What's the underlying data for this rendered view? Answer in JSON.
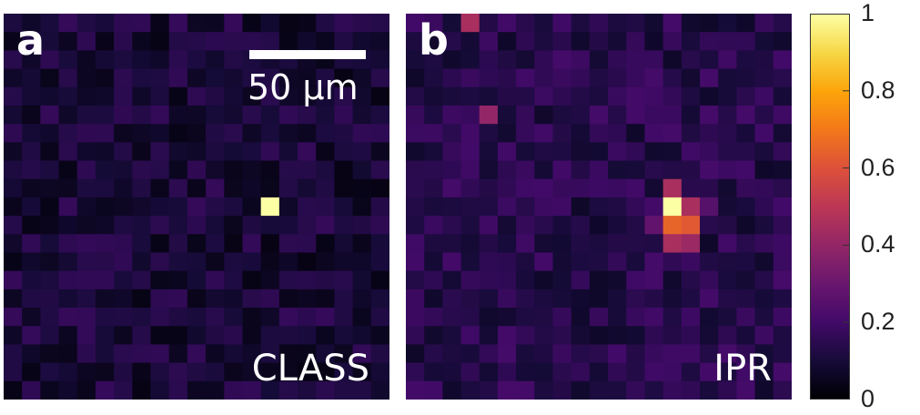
{
  "panels": [
    {
      "letter": "a",
      "method": "CLASS",
      "scalebar_label": "50 µm"
    },
    {
      "letter": "b",
      "method": "IPR"
    }
  ],
  "colormap": "inferno",
  "colors": {
    "background": "#000000",
    "text": "#ffffff",
    "tick_text": "#222222"
  },
  "chart_data": [
    {
      "type": "heatmap",
      "panel": "a",
      "rows": 21,
      "cols": 21,
      "vmin": 0,
      "vmax": 1,
      "colormap": "inferno",
      "background_level": 0.1,
      "peaks": [
        {
          "row": 10,
          "col": 14,
          "value": 1.0
        }
      ],
      "annotation": "CLASS"
    },
    {
      "type": "heatmap",
      "panel": "b",
      "rows": 21,
      "cols": 21,
      "vmin": 0,
      "vmax": 1,
      "colormap": "inferno",
      "background_level": 0.14,
      "peaks": [
        {
          "row": 10,
          "col": 14,
          "value": 1.0
        },
        {
          "row": 9,
          "col": 14,
          "value": 0.45
        },
        {
          "row": 10,
          "col": 15,
          "value": 0.45
        },
        {
          "row": 10,
          "col": 16,
          "value": 0.25
        },
        {
          "row": 11,
          "col": 14,
          "value": 0.65
        },
        {
          "row": 11,
          "col": 15,
          "value": 0.62
        },
        {
          "row": 12,
          "col": 14,
          "value": 0.45
        },
        {
          "row": 12,
          "col": 15,
          "value": 0.42
        },
        {
          "row": 11,
          "col": 13,
          "value": 0.28
        },
        {
          "row": 5,
          "col": 4,
          "value": 0.4
        },
        {
          "row": 0,
          "col": 3,
          "value": 0.45
        }
      ],
      "annotation": "IPR"
    }
  ],
  "colorbar": {
    "ticks": [
      "0",
      "0.2",
      "0.4",
      "0.6",
      "0.8",
      "1"
    ],
    "tick_values": [
      0,
      0.2,
      0.4,
      0.6,
      0.8,
      1
    ],
    "range": [
      0,
      1
    ]
  }
}
